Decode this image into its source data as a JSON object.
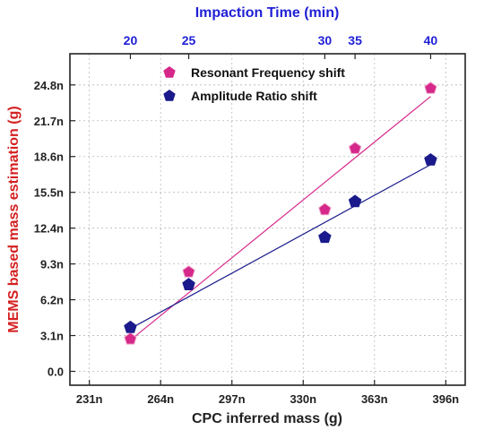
{
  "chart_data": {
    "type": "scatter",
    "xlabel": "CPC inferred mass (g)",
    "ylabel": "MEMS based mass estimation (g)",
    "top_axis_label": "Impaction Time (min)",
    "xlim": [
      222,
      405
    ],
    "ylim": [
      -1.2,
      27.5
    ],
    "x_ticks": [
      231,
      264,
      297,
      330,
      363,
      396
    ],
    "x_tick_labels": [
      "231n",
      "264n",
      "297n",
      "330n",
      "363n",
      "396n"
    ],
    "y_ticks": [
      0,
      3.1,
      6.2,
      9.3,
      12.4,
      15.5,
      18.6,
      21.7,
      24.8
    ],
    "y_tick_labels": [
      "0.0",
      "3.1n",
      "6.2n",
      "9.3n",
      "12.4n",
      "15.5n",
      "18.6n",
      "21.7n",
      "24.8n"
    ],
    "top_ticks": [
      {
        "label": "20",
        "x": 250
      },
      {
        "label": "25",
        "x": 277
      },
      {
        "label": "30",
        "x": 340
      },
      {
        "label": "35",
        "x": 354
      },
      {
        "label": "40",
        "x": 389
      }
    ],
    "grid": true,
    "legend_position": "top-right",
    "series": [
      {
        "name": "Resonant Frequency shift",
        "color": "#d6288a",
        "marker": "pentagon",
        "x": [
          250,
          277,
          340,
          354,
          389
        ],
        "y": [
          2.8,
          8.6,
          14.0,
          19.3,
          24.5
        ],
        "fit": {
          "x": [
            250,
            389
          ],
          "y": [
            2.7,
            23.8
          ]
        }
      },
      {
        "name": "Amplitude Ratio shift",
        "color": "#1a1a8c",
        "marker": "pentagon",
        "x": [
          250,
          277,
          340,
          354,
          389
        ],
        "y": [
          3.8,
          7.5,
          11.6,
          14.7,
          18.3
        ],
        "fit": {
          "x": [
            250,
            389
          ],
          "y": [
            3.7,
            17.9
          ]
        }
      }
    ]
  }
}
